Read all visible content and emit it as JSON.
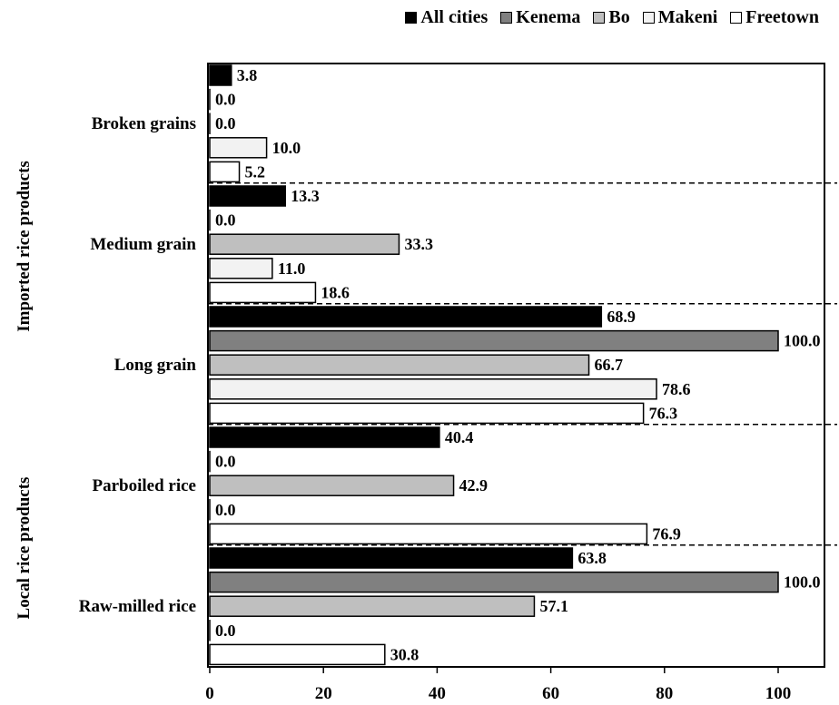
{
  "chart_data": {
    "type": "bar",
    "orientation": "horizontal",
    "xlim": [
      0,
      110
    ],
    "xticks": [
      0,
      20,
      40,
      60,
      80,
      100
    ],
    "grid": false,
    "legend_position": "top-right",
    "groups": [
      {
        "label": "Imported rice products",
        "categories": [
          "Broken grains",
          "Medium grain",
          "Long grain"
        ]
      },
      {
        "label": "Local rice products",
        "categories": [
          "Parboiled rice",
          "Raw-milled rice"
        ]
      }
    ],
    "categories": [
      "Broken grains",
      "Medium grain",
      "Long grain",
      "Parboiled rice",
      "Raw-milled rice"
    ],
    "series": [
      {
        "name": "All cities",
        "color": "#000000",
        "values": [
          3.8,
          13.3,
          68.9,
          40.4,
          63.8
        ]
      },
      {
        "name": "Kenema",
        "color": "#808080",
        "values": [
          0.0,
          0.0,
          100.0,
          0.0,
          100.0
        ]
      },
      {
        "name": "Bo",
        "color": "#bfbfbf",
        "values": [
          0.0,
          33.3,
          66.7,
          42.9,
          57.1
        ]
      },
      {
        "name": "Makeni",
        "color": "#f2f2f2",
        "values": [
          10.0,
          11.0,
          78.6,
          0.0,
          0.0
        ]
      },
      {
        "name": "Freetown",
        "color": "#ffffff",
        "values": [
          5.2,
          18.6,
          76.3,
          76.9,
          30.8
        ]
      }
    ],
    "data_labels": [
      [
        "3.8",
        "13.3",
        "68.9",
        "40.4",
        "63.8"
      ],
      [
        "0.0",
        "0.0",
        "100.0",
        "0.0",
        "100.0"
      ],
      [
        "0.0",
        "33.3",
        "66.7",
        "42.9",
        "57.1"
      ],
      [
        "10.0",
        "11.0",
        "78.6",
        "0.0",
        "0.0"
      ],
      [
        "5.2",
        "18.6",
        "76.3",
        "76.9",
        "30.8"
      ]
    ]
  }
}
